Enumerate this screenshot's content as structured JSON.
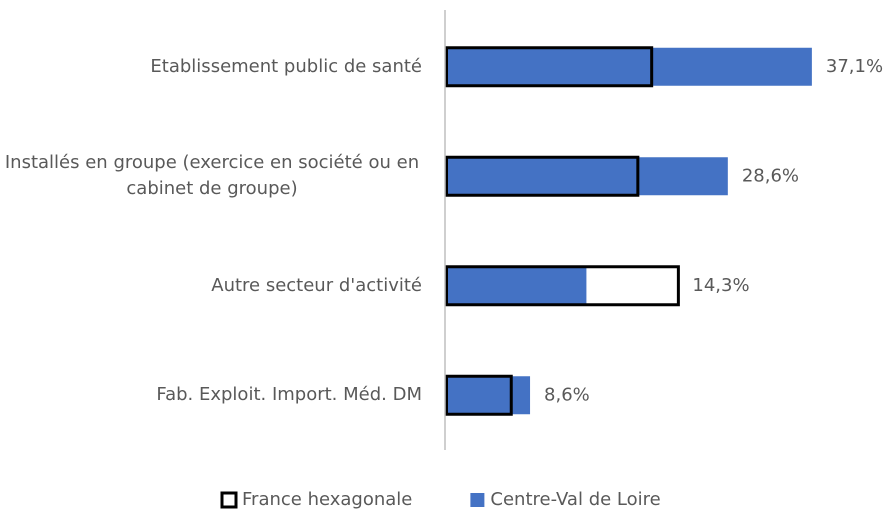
{
  "chart_data": {
    "type": "bar",
    "orientation": "horizontal",
    "categories": [
      "Etablissement public de santé",
      "Installés en groupe (exercice en société ou en cabinet de groupe)",
      "Autre secteur d'activité",
      "Fab. Exploit. Import. Méd. DM"
    ],
    "series": [
      {
        "name": "France hexagonale",
        "color": "#000000",
        "style": "outline",
        "values": [
          20.9,
          19.5,
          23.6,
          6.7
        ]
      },
      {
        "name": "Centre-Val de Loire",
        "color": "#4472c4",
        "style": "filled",
        "values": [
          37.1,
          28.6,
          14.3,
          8.6
        ],
        "value_labels": [
          "37,1%",
          "28,6%",
          "14,3%",
          "8,6%"
        ]
      }
    ],
    "xlim": [
      0,
      45
    ],
    "legend": "bottom"
  }
}
